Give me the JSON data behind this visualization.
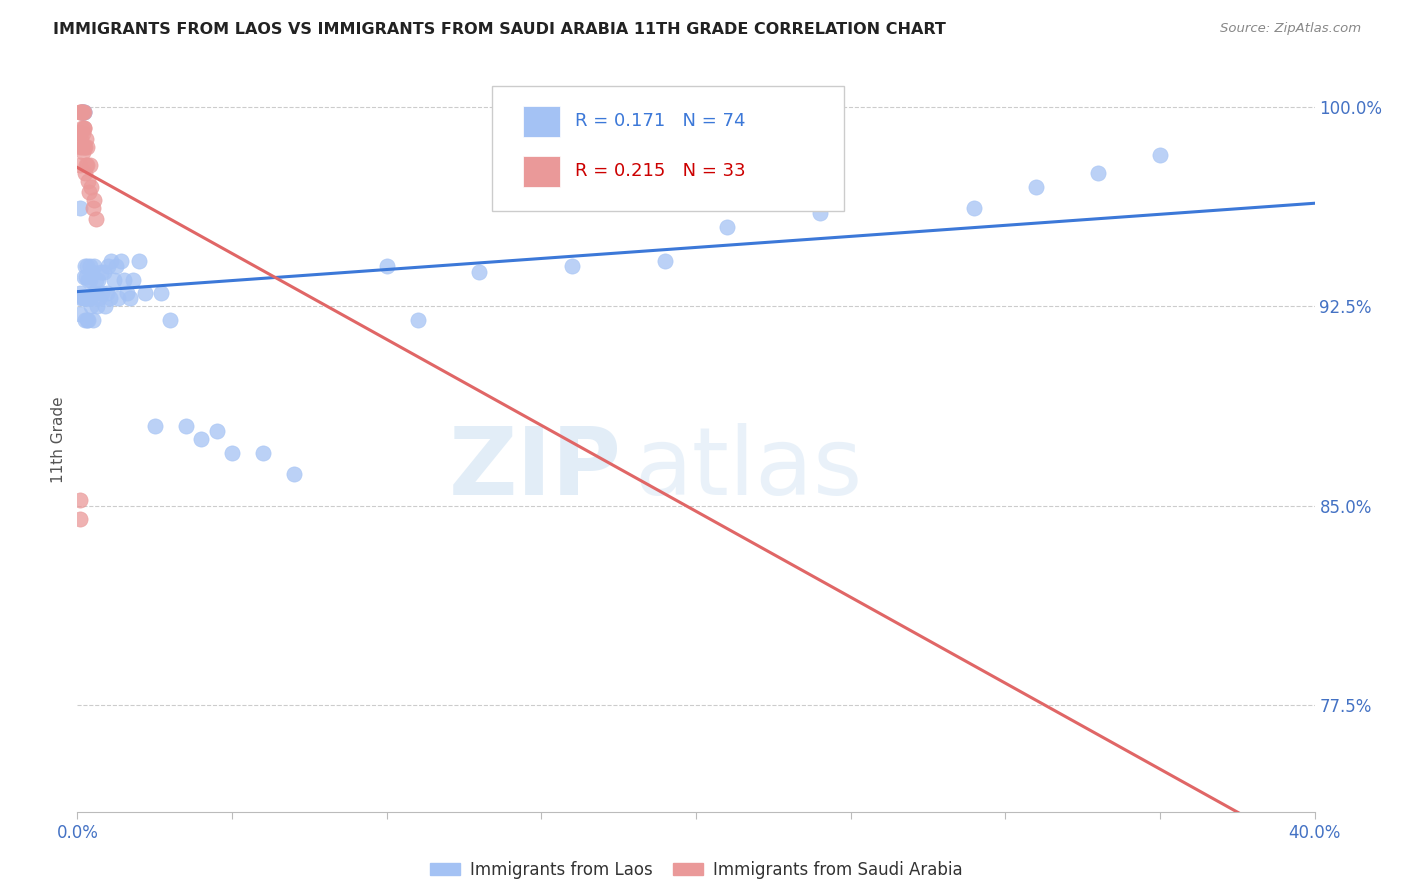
{
  "title": "IMMIGRANTS FROM LAOS VS IMMIGRANTS FROM SAUDI ARABIA 11TH GRADE CORRELATION CHART",
  "source": "Source: ZipAtlas.com",
  "ylabel_label": "11th Grade",
  "xmin": 0.0,
  "xmax": 0.4,
  "ymin": 0.735,
  "ymax": 1.015,
  "yticks": [
    0.775,
    0.85,
    0.925,
    1.0
  ],
  "ytick_labels": [
    "77.5%",
    "85.0%",
    "92.5%",
    "100.0%"
  ],
  "legend_laos": "Immigrants from Laos",
  "legend_saudi": "Immigrants from Saudi Arabia",
  "R_laos": 0.171,
  "N_laos": 74,
  "R_saudi": 0.215,
  "N_saudi": 33,
  "color_laos": "#a4c2f4",
  "color_saudi": "#ea9999",
  "trendline_color_laos": "#3c78d8",
  "trendline_color_saudi": "#e06666",
  "laos_x": [
    0.0008,
    0.001,
    0.001,
    0.0012,
    0.0015,
    0.0015,
    0.0015,
    0.0018,
    0.002,
    0.002,
    0.0022,
    0.0022,
    0.0025,
    0.0025,
    0.0025,
    0.0028,
    0.003,
    0.003,
    0.0032,
    0.0032,
    0.0035,
    0.0035,
    0.0038,
    0.004,
    0.004,
    0.0042,
    0.0045,
    0.0048,
    0.005,
    0.005,
    0.0055,
    0.0058,
    0.006,
    0.0065,
    0.0068,
    0.007,
    0.0075,
    0.008,
    0.0085,
    0.009,
    0.0095,
    0.01,
    0.0105,
    0.011,
    0.012,
    0.0125,
    0.013,
    0.014,
    0.015,
    0.016,
    0.017,
    0.018,
    0.02,
    0.022,
    0.025,
    0.027,
    0.03,
    0.035,
    0.04,
    0.045,
    0.05,
    0.06,
    0.07,
    0.1,
    0.11,
    0.13,
    0.16,
    0.19,
    0.21,
    0.24,
    0.29,
    0.31,
    0.33,
    0.35
  ],
  "laos_y": [
    0.962,
    0.93,
    0.922,
    0.928,
    0.998,
    0.998,
    0.998,
    0.928,
    0.998,
    0.936,
    0.998,
    0.928,
    0.94,
    0.928,
    0.92,
    0.936,
    0.928,
    0.92,
    0.94,
    0.928,
    0.935,
    0.92,
    0.928,
    0.94,
    0.928,
    0.935,
    0.925,
    0.938,
    0.93,
    0.92,
    0.94,
    0.93,
    0.935,
    0.925,
    0.935,
    0.928,
    0.938,
    0.93,
    0.938,
    0.925,
    0.93,
    0.94,
    0.928,
    0.942,
    0.935,
    0.94,
    0.928,
    0.942,
    0.935,
    0.93,
    0.928,
    0.935,
    0.942,
    0.93,
    0.88,
    0.93,
    0.92,
    0.88,
    0.875,
    0.878,
    0.87,
    0.87,
    0.862,
    0.94,
    0.92,
    0.938,
    0.94,
    0.942,
    0.955,
    0.96,
    0.962,
    0.97,
    0.975,
    0.982
  ],
  "saudi_x": [
    0.0008,
    0.0008,
    0.001,
    0.001,
    0.001,
    0.001,
    0.0012,
    0.0012,
    0.0015,
    0.0015,
    0.0015,
    0.0018,
    0.0018,
    0.0018,
    0.002,
    0.002,
    0.0022,
    0.0022,
    0.0025,
    0.0025,
    0.0028,
    0.0028,
    0.003,
    0.0032,
    0.0035,
    0.0038,
    0.004,
    0.0045,
    0.005,
    0.0055,
    0.006,
    0.001,
    0.001
  ],
  "saudi_y": [
    0.998,
    0.99,
    0.998,
    0.99,
    0.985,
    0.978,
    0.998,
    0.988,
    0.998,
    0.992,
    0.985,
    0.998,
    0.99,
    0.983,
    0.998,
    0.992,
    0.992,
    0.985,
    0.985,
    0.975,
    0.988,
    0.978,
    0.978,
    0.985,
    0.972,
    0.968,
    0.978,
    0.97,
    0.962,
    0.965,
    0.958,
    0.852,
    0.845
  ],
  "watermark_zip": "ZIP",
  "watermark_atlas": "atlas",
  "background_color": "#ffffff"
}
